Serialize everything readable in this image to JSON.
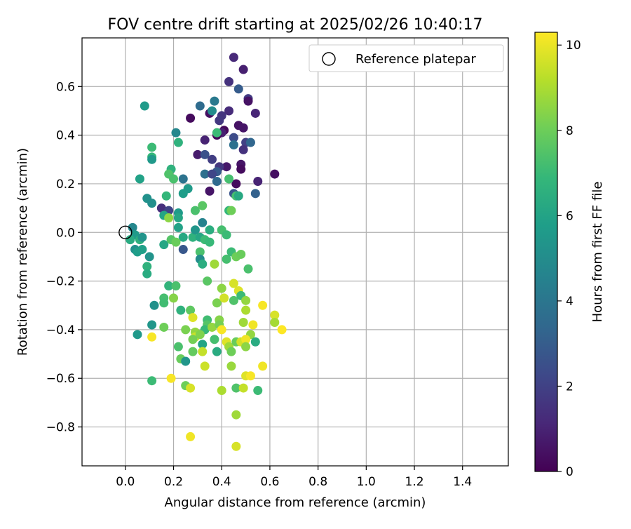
{
  "chart_data": {
    "type": "scatter",
    "title": "FOV centre drift starting at 2025/02/26 10:40:17",
    "xlabel": "Angular distance from reference (arcmin)",
    "ylabel": "Rotation from reference (arcmin)",
    "xlim": [
      -0.18,
      1.59
    ],
    "ylim": [
      -0.96,
      0.8
    ],
    "xticks": [
      0.0,
      0.2,
      0.4,
      0.6,
      0.8,
      1.0,
      1.2,
      1.4
    ],
    "xtick_labels": [
      "0.0",
      "0.2",
      "0.4",
      "0.6",
      "0.8",
      "1.0",
      "1.2",
      "1.4"
    ],
    "yticks": [
      0.6,
      0.4,
      0.2,
      0.0,
      -0.2,
      -0.4,
      -0.6,
      -0.8
    ],
    "ytick_labels": [
      "0.6",
      "0.4",
      "0.2",
      "0.0",
      "−0.2",
      "−0.4",
      "−0.6",
      "−0.8"
    ],
    "grid": true,
    "legend": {
      "position": "top-right",
      "entries": [
        "Reference platepar"
      ]
    },
    "reference_point": {
      "x": 0.0,
      "y": 0.0
    },
    "colorbar": {
      "label": "Hours from first FF file",
      "range": [
        0,
        10.3
      ],
      "ticks": [
        0,
        2,
        4,
        6,
        8,
        10
      ],
      "tick_labels": [
        "0",
        "2",
        "4",
        "6",
        "8",
        "10"
      ],
      "colormap": "viridis"
    },
    "colors": {
      "viridis": [
        "#440154",
        "#482878",
        "#3e4989",
        "#31688e",
        "#26828e",
        "#1f9e89",
        "#35b779",
        "#6ece58",
        "#b5de2b",
        "#fde725"
      ]
    },
    "points": [
      [
        0.45,
        0.72,
        1.2
      ],
      [
        0.49,
        0.67,
        0.9
      ],
      [
        0.43,
        0.62,
        1.5
      ],
      [
        0.47,
        0.59,
        3.0
      ],
      [
        0.51,
        0.55,
        1.8
      ],
      [
        0.51,
        0.54,
        0.5
      ],
      [
        0.37,
        0.54,
        4.2
      ],
      [
        0.31,
        0.52,
        3.6
      ],
      [
        0.35,
        0.49,
        0.4
      ],
      [
        0.36,
        0.5,
        5.0
      ],
      [
        0.43,
        0.5,
        1.3
      ],
      [
        0.4,
        0.48,
        1.6
      ],
      [
        0.54,
        0.49,
        1.1
      ],
      [
        0.39,
        0.46,
        1.7
      ],
      [
        0.27,
        0.47,
        0.3
      ],
      [
        0.47,
        0.44,
        0.5
      ],
      [
        0.49,
        0.43,
        0.6
      ],
      [
        0.41,
        0.42,
        0.2
      ],
      [
        0.4,
        0.41,
        0.9
      ],
      [
        0.38,
        0.4,
        0.1
      ],
      [
        0.45,
        0.39,
        2.4
      ],
      [
        0.5,
        0.37,
        2.0
      ],
      [
        0.52,
        0.37,
        3.4
      ],
      [
        0.45,
        0.36,
        3.8
      ],
      [
        0.49,
        0.34,
        1.5
      ],
      [
        0.33,
        0.38,
        1.0
      ],
      [
        0.3,
        0.32,
        0.8
      ],
      [
        0.33,
        0.32,
        2.6
      ],
      [
        0.36,
        0.3,
        1.9
      ],
      [
        0.42,
        0.27,
        0.7
      ],
      [
        0.39,
        0.27,
        1.7
      ],
      [
        0.48,
        0.28,
        0.6
      ],
      [
        0.48,
        0.26,
        0.3
      ],
      [
        0.38,
        0.25,
        2.9
      ],
      [
        0.33,
        0.24,
        3.8
      ],
      [
        0.36,
        0.24,
        2.2
      ],
      [
        0.55,
        0.21,
        1.0
      ],
      [
        0.62,
        0.24,
        0.4
      ],
      [
        0.38,
        0.21,
        3.5
      ],
      [
        0.35,
        0.17,
        0.6
      ],
      [
        0.46,
        0.2,
        0.3
      ],
      [
        0.45,
        0.16,
        2.7
      ],
      [
        0.54,
        0.16,
        3.2
      ],
      [
        0.46,
        0.15,
        7.2
      ],
      [
        0.47,
        0.15,
        6.2
      ],
      [
        0.38,
        0.41,
        7.0
      ],
      [
        0.21,
        0.41,
        4.8
      ],
      [
        0.22,
        0.37,
        6.6
      ],
      [
        0.11,
        0.35,
        7.0
      ],
      [
        0.11,
        0.31,
        6.8
      ],
      [
        0.11,
        0.3,
        5.5
      ],
      [
        0.08,
        0.52,
        5.6
      ],
      [
        0.19,
        0.26,
        6.6
      ],
      [
        0.18,
        0.24,
        7.4
      ],
      [
        0.06,
        0.22,
        5.9
      ],
      [
        0.2,
        0.22,
        7.3
      ],
      [
        0.24,
        0.22,
        3.9
      ],
      [
        0.43,
        0.22,
        7.2
      ],
      [
        0.26,
        0.18,
        5.6
      ],
      [
        0.24,
        0.16,
        5.7
      ],
      [
        0.09,
        0.14,
        5.2
      ],
      [
        0.17,
        0.15,
        6.8
      ],
      [
        0.11,
        0.12,
        5.1
      ],
      [
        0.15,
        0.1,
        1.4
      ],
      [
        0.18,
        0.09,
        2.1
      ],
      [
        0.29,
        0.09,
        7.3
      ],
      [
        0.32,
        0.11,
        7.6
      ],
      [
        0.43,
        0.09,
        6.8
      ],
      [
        0.44,
        0.09,
        8.0
      ],
      [
        0.16,
        0.07,
        6.0
      ],
      [
        0.18,
        0.06,
        8.5
      ],
      [
        0.22,
        0.08,
        5.6
      ],
      [
        0.22,
        0.06,
        6.1
      ],
      [
        0.22,
        0.02,
        5.9
      ],
      [
        0.32,
        0.04,
        4.6
      ],
      [
        0.24,
        -0.02,
        6.2
      ],
      [
        0.28,
        -0.02,
        6.6
      ],
      [
        0.29,
        0.01,
        5.4
      ],
      [
        0.31,
        -0.02,
        6.1
      ],
      [
        0.35,
        0.01,
        6.4
      ],
      [
        0.4,
        0.01,
        7.2
      ],
      [
        0.42,
        -0.01,
        7.0
      ],
      [
        0.33,
        -0.03,
        7.0
      ],
      [
        0.35,
        -0.04,
        6.9
      ],
      [
        0.03,
        0.02,
        4.8
      ],
      [
        0.04,
        -0.01,
        5.6
      ],
      [
        0.06,
        -0.03,
        6.5
      ],
      [
        0.07,
        -0.02,
        5.3
      ],
      [
        0.02,
        -0.03,
        6.3
      ],
      [
        0.04,
        -0.07,
        5.1
      ],
      [
        0.05,
        -0.08,
        5.7
      ],
      [
        0.07,
        -0.07,
        5.8
      ],
      [
        0.16,
        -0.05,
        6.1
      ],
      [
        0.19,
        -0.03,
        7.5
      ],
      [
        0.21,
        -0.04,
        7.9
      ],
      [
        0.24,
        -0.07,
        2.8
      ],
      [
        0.1,
        -0.1,
        5.3
      ],
      [
        0.09,
        -0.14,
        6.6
      ],
      [
        0.09,
        -0.17,
        6.3
      ],
      [
        0.31,
        -0.08,
        7.3
      ],
      [
        0.31,
        -0.11,
        5.0
      ],
      [
        0.32,
        -0.13,
        6.4
      ],
      [
        0.37,
        -0.13,
        8.8
      ],
      [
        0.42,
        -0.11,
        7.2
      ],
      [
        0.44,
        -0.08,
        7.0
      ],
      [
        0.46,
        -0.1,
        8.0
      ],
      [
        0.48,
        -0.09,
        7.9
      ],
      [
        0.51,
        -0.15,
        7.3
      ],
      [
        0.34,
        -0.2,
        7.6
      ],
      [
        0.18,
        -0.22,
        6.7
      ],
      [
        0.21,
        -0.22,
        7.3
      ],
      [
        0.16,
        -0.27,
        7.2
      ],
      [
        0.16,
        -0.29,
        7.1
      ],
      [
        0.12,
        -0.3,
        5.2
      ],
      [
        0.2,
        -0.27,
        8.4
      ],
      [
        0.23,
        -0.32,
        6.6
      ],
      [
        0.27,
        -0.32,
        7.7
      ],
      [
        0.38,
        -0.29,
        8.2
      ],
      [
        0.4,
        -0.23,
        8.5
      ],
      [
        0.41,
        -0.27,
        9.6
      ],
      [
        0.45,
        -0.21,
        9.7
      ],
      [
        0.47,
        -0.24,
        9.8
      ],
      [
        0.45,
        -0.28,
        7.4
      ],
      [
        0.48,
        -0.26,
        7.0
      ],
      [
        0.5,
        -0.28,
        8.6
      ],
      [
        0.5,
        -0.32,
        9.0
      ],
      [
        0.49,
        -0.37,
        8.8
      ],
      [
        0.53,
        -0.38,
        10.1
      ],
      [
        0.52,
        -0.42,
        8.6
      ],
      [
        0.57,
        -0.3,
        10.2
      ],
      [
        0.62,
        -0.34,
        9.7
      ],
      [
        0.62,
        -0.37,
        8.9
      ],
      [
        0.65,
        -0.4,
        10.3
      ],
      [
        0.11,
        -0.38,
        5.4
      ],
      [
        0.16,
        -0.39,
        8.0
      ],
      [
        0.28,
        -0.35,
        9.8
      ],
      [
        0.34,
        -0.36,
        7.1
      ],
      [
        0.34,
        -0.38,
        7.5
      ],
      [
        0.33,
        -0.4,
        6.9
      ],
      [
        0.36,
        -0.39,
        8.6
      ],
      [
        0.39,
        -0.36,
        8.4
      ],
      [
        0.39,
        -0.38,
        8.1
      ],
      [
        0.4,
        -0.4,
        10.2
      ],
      [
        0.25,
        -0.4,
        8.2
      ],
      [
        0.29,
        -0.41,
        8.6
      ],
      [
        0.29,
        -0.43,
        9.5
      ],
      [
        0.31,
        -0.42,
        8.3
      ],
      [
        0.28,
        -0.44,
        8.1
      ],
      [
        0.32,
        -0.46,
        6.0
      ],
      [
        0.37,
        -0.44,
        7.2
      ],
      [
        0.42,
        -0.45,
        9.8
      ],
      [
        0.43,
        -0.47,
        8.8
      ],
      [
        0.46,
        -0.45,
        7.9
      ],
      [
        0.48,
        -0.45,
        9.6
      ],
      [
        0.5,
        -0.44,
        10.1
      ],
      [
        0.5,
        -0.47,
        8.5
      ],
      [
        0.54,
        -0.45,
        6.3
      ],
      [
        0.22,
        -0.47,
        7.3
      ],
      [
        0.28,
        -0.49,
        7.8
      ],
      [
        0.32,
        -0.49,
        9.4
      ],
      [
        0.38,
        -0.49,
        6.3
      ],
      [
        0.44,
        -0.49,
        8.0
      ],
      [
        0.23,
        -0.52,
        7.9
      ],
      [
        0.25,
        -0.53,
        5.4
      ],
      [
        0.33,
        -0.55,
        9.5
      ],
      [
        0.44,
        -0.55,
        8.7
      ],
      [
        0.57,
        -0.55,
        10.1
      ],
      [
        0.11,
        -0.43,
        10.2
      ],
      [
        0.05,
        -0.42,
        5.5
      ],
      [
        0.11,
        -0.61,
        7.0
      ],
      [
        0.19,
        -0.6,
        10.2
      ],
      [
        0.25,
        -0.63,
        8.0
      ],
      [
        0.27,
        -0.64,
        9.7
      ],
      [
        0.4,
        -0.65,
        9.0
      ],
      [
        0.46,
        -0.64,
        7.4
      ],
      [
        0.49,
        -0.64,
        9.4
      ],
      [
        0.5,
        -0.59,
        9.8
      ],
      [
        0.52,
        -0.59,
        10.2
      ],
      [
        0.55,
        -0.65,
        7.0
      ],
      [
        0.46,
        -0.75,
        8.8
      ],
      [
        0.27,
        -0.84,
        10.1
      ],
      [
        0.46,
        -0.88,
        9.7
      ]
    ]
  }
}
